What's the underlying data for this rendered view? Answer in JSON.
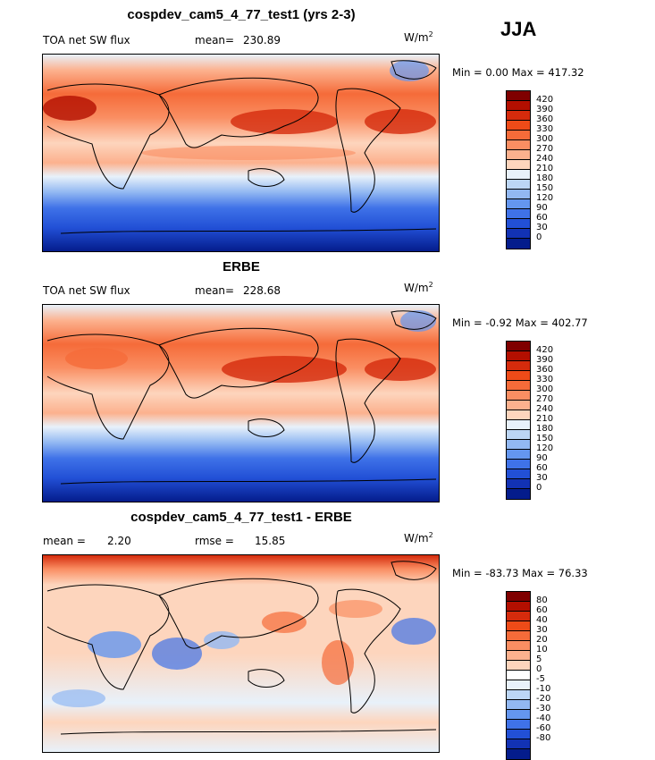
{
  "season": "JJA",
  "panels": [
    {
      "title": "cospdev_cam5_4_77_test1 (yrs 2-3)",
      "left_label": "TOA net SW flux",
      "stat_label": "mean=",
      "stat_value": "230.89",
      "stat2_label": "",
      "stat2_value": "",
      "units": "W/m",
      "units_sup": "2",
      "minmax": "Min =   0.00 Max = 417.32",
      "colorbar": {
        "colors": [
          "#7f0000",
          "#b30f00",
          "#d52b0c",
          "#ee4b18",
          "#f56b39",
          "#fa8e62",
          "#fcb18e",
          "#fdd5bd",
          "#e8f1fa",
          "#bcd6f5",
          "#92b8f2",
          "#6496ef",
          "#3f72e8",
          "#2250d6",
          "#1232b4",
          "#041c8c"
        ],
        "labels": [
          "420",
          "390",
          "360",
          "330",
          "300",
          "270",
          "240",
          "210",
          "180",
          "150",
          "120",
          "90",
          "60",
          "30",
          "0"
        ]
      }
    },
    {
      "title": "ERBE",
      "left_label": "TOA net SW flux",
      "stat_label": "mean=",
      "stat_value": "228.68",
      "stat2_label": "",
      "stat2_value": "",
      "units": "W/m",
      "units_sup": "2",
      "minmax": "Min =  -0.92 Max = 402.77",
      "colorbar": {
        "colors": [
          "#7f0000",
          "#b30f00",
          "#d52b0c",
          "#ee4b18",
          "#f56b39",
          "#fa8e62",
          "#fcb18e",
          "#fdd5bd",
          "#e8f1fa",
          "#bcd6f5",
          "#92b8f2",
          "#6496ef",
          "#3f72e8",
          "#2250d6",
          "#1232b4",
          "#041c8c"
        ],
        "labels": [
          "420",
          "390",
          "360",
          "330",
          "300",
          "270",
          "240",
          "210",
          "180",
          "150",
          "120",
          "90",
          "60",
          "30",
          "0"
        ]
      }
    },
    {
      "title": "cospdev_cam5_4_77_test1 - ERBE",
      "left_label": "mean =",
      "stat_label": "",
      "stat_value": "2.20",
      "stat2_label": "rmse =",
      "stat2_value": "15.85",
      "units": "W/m",
      "units_sup": "2",
      "minmax": "Min = -83.73 Max =  76.33",
      "colorbar": {
        "colors": [
          "#7f0000",
          "#b30f00",
          "#d52b0c",
          "#ee4b18",
          "#f56b39",
          "#fa8e62",
          "#fcb18e",
          "#fdd5bd",
          "#ffffff",
          "#e8f1fa",
          "#bcd6f5",
          "#92b8f2",
          "#6496ef",
          "#3f72e8",
          "#2250d6",
          "#1232b4",
          "#041c8c"
        ],
        "labels": [
          "80",
          "60",
          "40",
          "30",
          "20",
          "10",
          "5",
          "0",
          "-5",
          "-10",
          "-20",
          "-30",
          "-40",
          "-60",
          "-80"
        ]
      }
    }
  ]
}
